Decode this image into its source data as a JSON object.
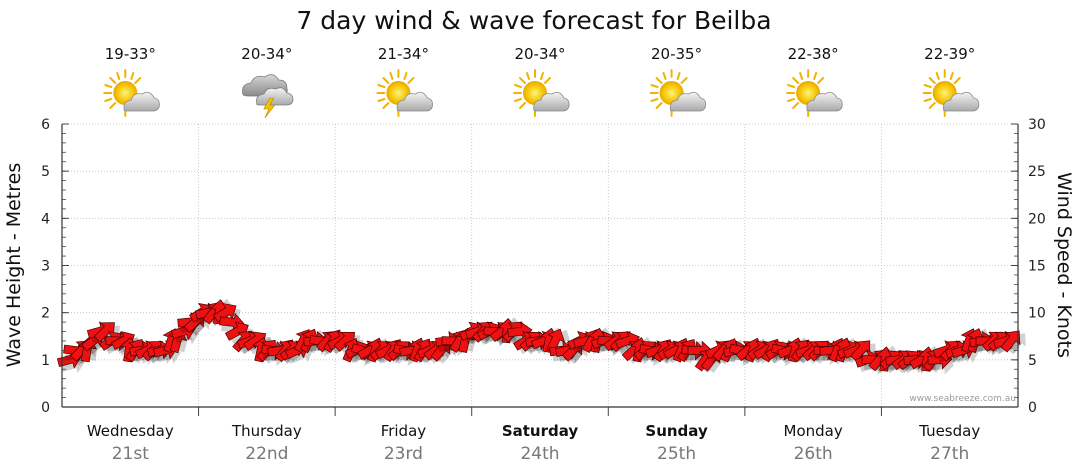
{
  "chart_data": {
    "type": "line",
    "title": "7 day wind & wave forecast for Beilba",
    "ylabel_left": "Wave Height - Metres",
    "ylabel_right": "Wind Speed - Knots",
    "ylim_left": [
      0,
      6
    ],
    "ylim_right": [
      0,
      30
    ],
    "yticks_left": [
      "0",
      "1",
      "2",
      "3",
      "4",
      "5",
      "6"
    ],
    "yticks_right": [
      "0",
      "5",
      "10",
      "15",
      "20",
      "25",
      "30"
    ],
    "grid": true,
    "credit": "www.seabreeze.com.au",
    "days": [
      {
        "day": "Wednesday",
        "date": "21st",
        "temp": "19-33°",
        "icon": "sun-cloud-icon",
        "bold": false
      },
      {
        "day": "Thursday",
        "date": "22nd",
        "temp": "20-34°",
        "icon": "storm-cloud-icon",
        "bold": false
      },
      {
        "day": "Friday",
        "date": "23rd",
        "temp": "21-34°",
        "icon": "sun-cloud-icon",
        "bold": false
      },
      {
        "day": "Saturday",
        "date": "24th",
        "temp": "20-34°",
        "icon": "sun-cloud-icon",
        "bold": true
      },
      {
        "day": "Sunday",
        "date": "25th",
        "temp": "20-35°",
        "icon": "sun-cloud-icon",
        "bold": true
      },
      {
        "day": "Monday",
        "date": "26th",
        "temp": "22-38°",
        "icon": "sun-cloud-icon",
        "bold": false
      },
      {
        "day": "Tuesday",
        "date": "27th",
        "temp": "22-39°",
        "icon": "sun-cloud-icon",
        "bold": false
      }
    ],
    "series": [
      {
        "unit": "knots",
        "color": "#ee1111",
        "values": [
          5,
          6,
          6,
          6,
          7,
          8,
          8,
          7,
          7,
          7,
          6,
          6,
          6,
          6,
          6,
          6,
          6,
          7,
          7,
          8,
          9,
          9,
          10,
          10,
          10,
          10,
          10,
          9,
          8,
          7,
          7,
          7,
          6,
          6,
          6,
          6,
          6,
          6,
          6,
          7,
          7,
          7,
          7,
          7,
          7,
          7,
          7,
          6,
          6,
          6,
          6,
          6,
          6,
          6,
          6,
          6,
          6,
          6,
          6,
          6,
          6,
          6,
          6,
          7,
          7,
          7,
          7,
          8,
          8,
          8,
          8,
          8,
          8,
          8,
          8,
          8,
          7,
          7,
          7,
          7,
          7,
          7,
          6,
          6,
          6,
          7,
          7,
          7,
          7,
          7,
          7,
          7,
          7,
          7,
          6,
          6,
          6,
          6,
          6,
          6,
          6,
          6,
          6,
          6,
          6,
          6,
          5,
          5,
          6,
          6,
          6,
          6,
          6,
          6,
          6,
          6,
          6,
          6,
          6,
          6,
          6,
          6,
          6,
          6,
          6,
          6,
          6,
          6,
          6,
          6,
          6,
          6,
          6,
          5,
          5,
          5,
          5,
          5,
          5,
          5,
          5,
          5,
          5,
          5,
          5,
          5,
          6,
          6,
          6,
          6,
          7,
          7,
          7,
          7,
          7,
          7,
          7,
          7
        ]
      }
    ]
  }
}
